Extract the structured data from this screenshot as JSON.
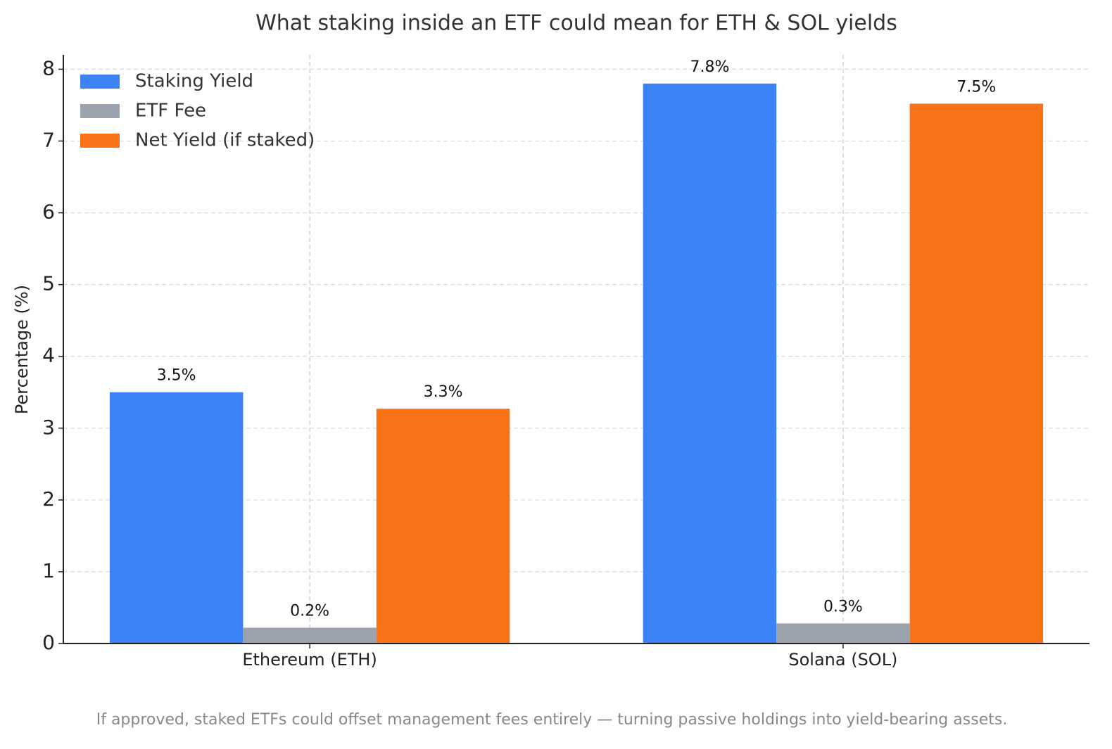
{
  "chart_data": {
    "type": "bar",
    "title": "What staking inside an ETF could mean for ETH & SOL yields",
    "ylabel": "Percentage (%)",
    "caption": "If approved, staked ETFs could offset management fees entirely — turning passive holdings into yield-bearing assets.",
    "categories": [
      "Ethereum (ETH)",
      "Solana (SOL)"
    ],
    "series": [
      {
        "name": "Staking Yield",
        "color": "#3b82f6",
        "values": [
          3.5,
          7.8
        ],
        "value_labels": [
          "3.5%",
          "7.8%"
        ]
      },
      {
        "name": "ETF Fee",
        "color": "#9ca3af",
        "values": [
          0.22,
          0.28
        ],
        "value_labels": [
          "0.2%",
          "0.3%"
        ]
      },
      {
        "name": "Net Yield (if staked)",
        "color": "#f97316",
        "values": [
          3.27,
          7.52
        ],
        "value_labels": [
          "3.3%",
          "7.5%"
        ]
      }
    ],
    "ylim": [
      0,
      8.2
    ],
    "yticks": [
      0,
      1,
      2,
      3,
      4,
      5,
      6,
      7,
      8
    ],
    "grid": true,
    "legend": "upper left"
  }
}
